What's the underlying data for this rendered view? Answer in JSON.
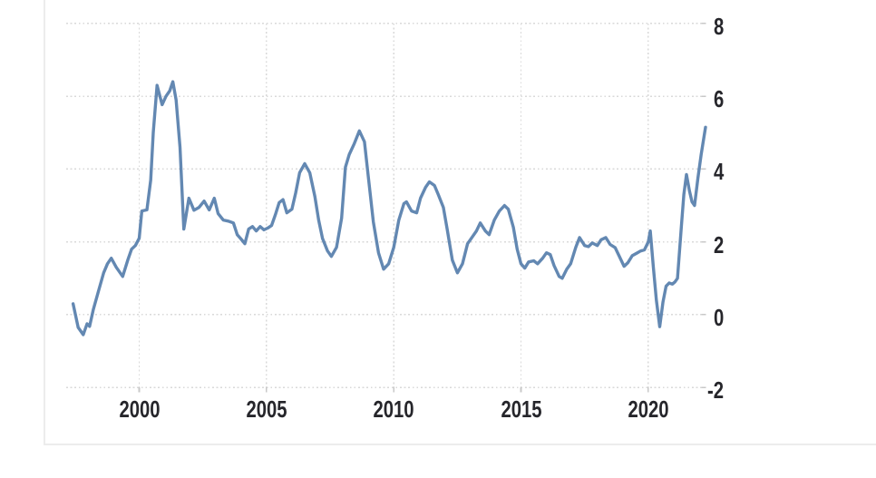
{
  "chart_data": {
    "type": "line",
    "title": "",
    "xlabel": "",
    "ylabel": "",
    "legend": "none",
    "grid_style": "dotted",
    "y_axis_side": "right",
    "xlim": [
      1997.13,
      2022.25
    ],
    "ylim": [
      -2,
      8
    ],
    "x_ticks": [
      "2000",
      "2005",
      "2010",
      "2015",
      "2020"
    ],
    "x_tick_years": [
      2000,
      2005,
      2010,
      2015,
      2020
    ],
    "y_ticks": [
      "8",
      "6",
      "4",
      "2",
      "0",
      "-2"
    ],
    "y_tick_values": [
      8,
      6,
      4,
      2,
      0,
      -2
    ],
    "colors": {
      "line": "#5b82ae",
      "grid": "#d9d9d9",
      "tick": "#c8c8c8",
      "label": "#26262b",
      "panel_border": "#ececec",
      "background": "#ffffff"
    },
    "series": [
      {
        "name": "value",
        "color": "#5b82ae",
        "points": [
          [
            1997.4,
            0.3
          ],
          [
            1997.6,
            -0.35
          ],
          [
            1997.8,
            -0.55
          ],
          [
            1997.95,
            -0.25
          ],
          [
            1998.05,
            -0.32
          ],
          [
            1998.2,
            0.15
          ],
          [
            1998.4,
            0.65
          ],
          [
            1998.6,
            1.15
          ],
          [
            1998.75,
            1.4
          ],
          [
            1998.9,
            1.55
          ],
          [
            1999.1,
            1.3
          ],
          [
            1999.35,
            1.05
          ],
          [
            1999.55,
            1.5
          ],
          [
            1999.7,
            1.8
          ],
          [
            1999.85,
            1.9
          ],
          [
            2000.0,
            2.1
          ],
          [
            2000.1,
            2.85
          ],
          [
            2000.3,
            2.88
          ],
          [
            2000.45,
            3.7
          ],
          [
            2000.55,
            5.0
          ],
          [
            2000.7,
            6.3
          ],
          [
            2000.9,
            5.77
          ],
          [
            2001.05,
            6.0
          ],
          [
            2001.2,
            6.15
          ],
          [
            2001.32,
            6.4
          ],
          [
            2001.45,
            5.9
          ],
          [
            2001.6,
            4.6
          ],
          [
            2001.75,
            2.35
          ],
          [
            2001.95,
            3.2
          ],
          [
            2002.15,
            2.87
          ],
          [
            2002.35,
            2.95
          ],
          [
            2002.55,
            3.12
          ],
          [
            2002.75,
            2.88
          ],
          [
            2002.95,
            3.2
          ],
          [
            2003.1,
            2.78
          ],
          [
            2003.3,
            2.6
          ],
          [
            2003.5,
            2.57
          ],
          [
            2003.7,
            2.52
          ],
          [
            2003.85,
            2.2
          ],
          [
            2004.0,
            2.08
          ],
          [
            2004.15,
            1.95
          ],
          [
            2004.3,
            2.35
          ],
          [
            2004.45,
            2.42
          ],
          [
            2004.6,
            2.3
          ],
          [
            2004.75,
            2.42
          ],
          [
            2004.9,
            2.33
          ],
          [
            2005.05,
            2.38
          ],
          [
            2005.2,
            2.45
          ],
          [
            2005.35,
            2.75
          ],
          [
            2005.5,
            3.08
          ],
          [
            2005.65,
            3.16
          ],
          [
            2005.8,
            2.8
          ],
          [
            2006.0,
            2.9
          ],
          [
            2006.15,
            3.35
          ],
          [
            2006.3,
            3.9
          ],
          [
            2006.5,
            4.15
          ],
          [
            2006.7,
            3.9
          ],
          [
            2006.9,
            3.25
          ],
          [
            2007.05,
            2.6
          ],
          [
            2007.2,
            2.1
          ],
          [
            2007.4,
            1.75
          ],
          [
            2007.55,
            1.6
          ],
          [
            2007.75,
            1.85
          ],
          [
            2007.95,
            2.65
          ],
          [
            2008.1,
            4.05
          ],
          [
            2008.25,
            4.4
          ],
          [
            2008.45,
            4.7
          ],
          [
            2008.65,
            5.05
          ],
          [
            2008.85,
            4.75
          ],
          [
            2009.0,
            3.8
          ],
          [
            2009.2,
            2.55
          ],
          [
            2009.4,
            1.7
          ],
          [
            2009.6,
            1.25
          ],
          [
            2009.8,
            1.4
          ],
          [
            2010.0,
            1.85
          ],
          [
            2010.2,
            2.6
          ],
          [
            2010.4,
            3.05
          ],
          [
            2010.5,
            3.1
          ],
          [
            2010.7,
            2.85
          ],
          [
            2010.9,
            2.8
          ],
          [
            2011.05,
            3.2
          ],
          [
            2011.25,
            3.5
          ],
          [
            2011.4,
            3.65
          ],
          [
            2011.6,
            3.55
          ],
          [
            2011.75,
            3.3
          ],
          [
            2011.95,
            2.95
          ],
          [
            2012.1,
            2.35
          ],
          [
            2012.3,
            1.5
          ],
          [
            2012.5,
            1.15
          ],
          [
            2012.7,
            1.4
          ],
          [
            2012.9,
            1.95
          ],
          [
            2013.05,
            2.1
          ],
          [
            2013.25,
            2.3
          ],
          [
            2013.4,
            2.52
          ],
          [
            2013.6,
            2.3
          ],
          [
            2013.75,
            2.2
          ],
          [
            2013.95,
            2.6
          ],
          [
            2014.15,
            2.85
          ],
          [
            2014.35,
            3.0
          ],
          [
            2014.5,
            2.9
          ],
          [
            2014.7,
            2.4
          ],
          [
            2014.85,
            1.8
          ],
          [
            2015.0,
            1.4
          ],
          [
            2015.15,
            1.28
          ],
          [
            2015.3,
            1.45
          ],
          [
            2015.5,
            1.48
          ],
          [
            2015.65,
            1.4
          ],
          [
            2015.85,
            1.55
          ],
          [
            2016.0,
            1.7
          ],
          [
            2016.15,
            1.65
          ],
          [
            2016.3,
            1.35
          ],
          [
            2016.5,
            1.05
          ],
          [
            2016.62,
            1.0
          ],
          [
            2016.8,
            1.25
          ],
          [
            2016.95,
            1.4
          ],
          [
            2017.15,
            1.85
          ],
          [
            2017.3,
            2.12
          ],
          [
            2017.5,
            1.9
          ],
          [
            2017.65,
            1.87
          ],
          [
            2017.8,
            1.97
          ],
          [
            2018.0,
            1.9
          ],
          [
            2018.15,
            2.06
          ],
          [
            2018.33,
            2.12
          ],
          [
            2018.5,
            1.93
          ],
          [
            2018.7,
            1.84
          ],
          [
            2018.85,
            1.62
          ],
          [
            2019.05,
            1.33
          ],
          [
            2019.2,
            1.43
          ],
          [
            2019.37,
            1.62
          ],
          [
            2019.55,
            1.69
          ],
          [
            2019.7,
            1.75
          ],
          [
            2019.85,
            1.78
          ],
          [
            2020.0,
            2.0
          ],
          [
            2020.08,
            2.3
          ],
          [
            2020.2,
            1.3
          ],
          [
            2020.32,
            0.4
          ],
          [
            2020.45,
            -0.33
          ],
          [
            2020.58,
            0.35
          ],
          [
            2020.7,
            0.78
          ],
          [
            2020.82,
            0.87
          ],
          [
            2020.95,
            0.84
          ],
          [
            2021.05,
            0.9
          ],
          [
            2021.15,
            1.0
          ],
          [
            2021.3,
            2.4
          ],
          [
            2021.4,
            3.3
          ],
          [
            2021.5,
            3.85
          ],
          [
            2021.62,
            3.4
          ],
          [
            2021.72,
            3.1
          ],
          [
            2021.82,
            3.0
          ],
          [
            2021.95,
            3.75
          ],
          [
            2022.08,
            4.4
          ],
          [
            2022.25,
            5.15
          ]
        ]
      }
    ]
  }
}
